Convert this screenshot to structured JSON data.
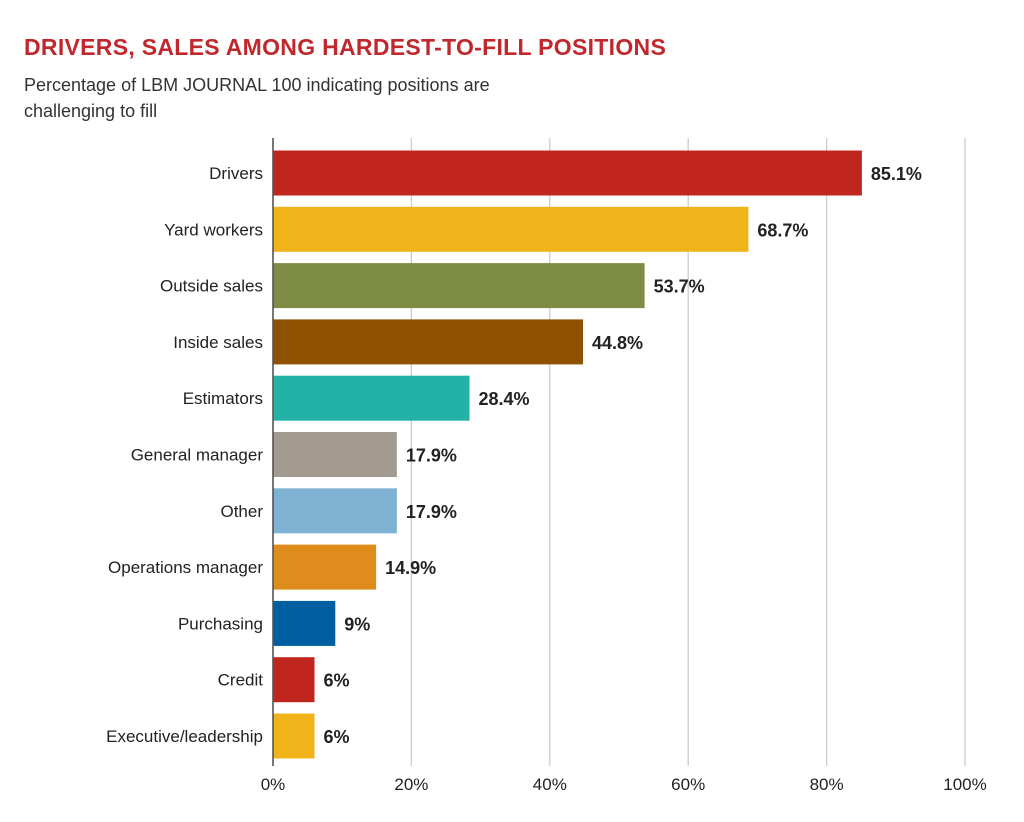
{
  "chart_data": {
    "type": "bar",
    "orientation": "horizontal",
    "title": "DRIVERS, SALES AMONG HARDEST-TO-FILL POSITIONS",
    "subtitle": "Percentage of LBM JOURNAL 100 indicating positions are challenging to fill",
    "categories": [
      "Drivers",
      "Yard workers",
      "Outside sales",
      "Inside sales",
      "Estimators",
      "General manager",
      "Other",
      "Operations manager",
      "Purchasing",
      "Credit",
      "Executive/leadership"
    ],
    "values": [
      85.1,
      68.7,
      53.7,
      44.8,
      28.4,
      17.9,
      17.9,
      14.9,
      9,
      6,
      6
    ],
    "value_labels": [
      "85.1%",
      "68.7%",
      "53.7%",
      "44.8%",
      "28.4%",
      "17.9%",
      "17.9%",
      "14.9%",
      "9%",
      "6%",
      "6%"
    ],
    "colors": [
      "#c0251e",
      "#f0b41a",
      "#7f8c46",
      "#8f5102",
      "#22b3a6",
      "#a39b8f",
      "#7fb2d2",
      "#de8d1c",
      "#005fa1",
      "#c0251e",
      "#f0b41a"
    ],
    "xlim": [
      0,
      100
    ],
    "x_ticks": [
      "0%",
      "20%",
      "40%",
      "60%",
      "80%",
      "100%"
    ],
    "xlabel": "",
    "ylabel": "",
    "grid": true,
    "title_color": "#c0282d"
  }
}
